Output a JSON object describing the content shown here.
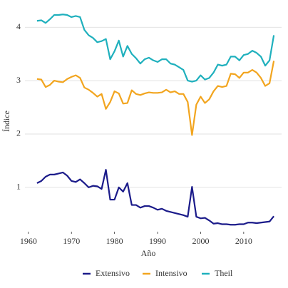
{
  "chart_data": {
    "type": "line",
    "x_label": "Año",
    "y_label": "Índice",
    "x": [
      1962,
      1963,
      1964,
      1965,
      1966,
      1967,
      1968,
      1969,
      1970,
      1971,
      1972,
      1973,
      1974,
      1975,
      1976,
      1977,
      1978,
      1979,
      1980,
      1981,
      1982,
      1983,
      1984,
      1985,
      1986,
      1987,
      1988,
      1989,
      1990,
      1991,
      1992,
      1993,
      1994,
      1995,
      1996,
      1997,
      1998,
      1999,
      2000,
      2001,
      2002,
      2003,
      2004,
      2005,
      2006,
      2007,
      2008,
      2009,
      2010,
      2011,
      2012,
      2013,
      2014,
      2015,
      2016,
      2017
    ],
    "series": [
      {
        "name": "Extensivo",
        "color": "#1b1b8a",
        "values": [
          1.08,
          1.12,
          1.2,
          1.24,
          1.24,
          1.26,
          1.28,
          1.22,
          1.12,
          1.1,
          1.15,
          1.08,
          1.0,
          1.03,
          1.02,
          0.97,
          1.33,
          0.77,
          0.77,
          1.0,
          0.92,
          1.08,
          0.67,
          0.67,
          0.62,
          0.65,
          0.65,
          0.62,
          0.58,
          0.6,
          0.56,
          0.54,
          0.52,
          0.5,
          0.48,
          0.45,
          1.01,
          0.45,
          0.42,
          0.43,
          0.38,
          0.32,
          0.33,
          0.31,
          0.31,
          0.3,
          0.3,
          0.31,
          0.31,
          0.34,
          0.34,
          0.33,
          0.34,
          0.35,
          0.36,
          0.46
        ]
      },
      {
        "name": "Intensivo",
        "color": "#f2a51f",
        "values": [
          3.03,
          3.02,
          2.88,
          2.92,
          3.0,
          2.98,
          2.97,
          3.03,
          3.07,
          3.1,
          3.05,
          2.87,
          2.83,
          2.77,
          2.7,
          2.75,
          2.47,
          2.6,
          2.8,
          2.76,
          2.57,
          2.58,
          2.82,
          2.75,
          2.73,
          2.76,
          2.78,
          2.77,
          2.77,
          2.78,
          2.83,
          2.78,
          2.8,
          2.75,
          2.75,
          2.6,
          1.98,
          2.55,
          2.7,
          2.58,
          2.65,
          2.8,
          2.9,
          2.88,
          2.9,
          3.13,
          3.12,
          3.05,
          3.15,
          3.15,
          3.2,
          3.15,
          3.05,
          2.9,
          2.95,
          3.37
        ]
      },
      {
        "name": "Theil",
        "color": "#1fb0bd",
        "values": [
          4.12,
          4.13,
          4.08,
          4.15,
          4.23,
          4.23,
          4.24,
          4.23,
          4.19,
          4.21,
          4.19,
          3.95,
          3.85,
          3.8,
          3.72,
          3.74,
          3.78,
          3.4,
          3.55,
          3.75,
          3.45,
          3.65,
          3.5,
          3.42,
          3.32,
          3.4,
          3.43,
          3.38,
          3.35,
          3.4,
          3.4,
          3.32,
          3.3,
          3.25,
          3.2,
          3.0,
          2.98,
          3.0,
          3.1,
          3.02,
          3.05,
          3.15,
          3.3,
          3.28,
          3.3,
          3.45,
          3.45,
          3.38,
          3.48,
          3.5,
          3.56,
          3.52,
          3.45,
          3.28,
          3.38,
          3.85
        ]
      }
    ],
    "xlim": [
      1959.2,
      2018.8
    ],
    "xticks": [
      1960,
      1970,
      1980,
      1990,
      2000,
      2010
    ],
    "ylim": [
      0.17,
      4.31
    ],
    "yticks": [
      1,
      2,
      3,
      4
    ],
    "grid": true,
    "legend": "bottom"
  }
}
